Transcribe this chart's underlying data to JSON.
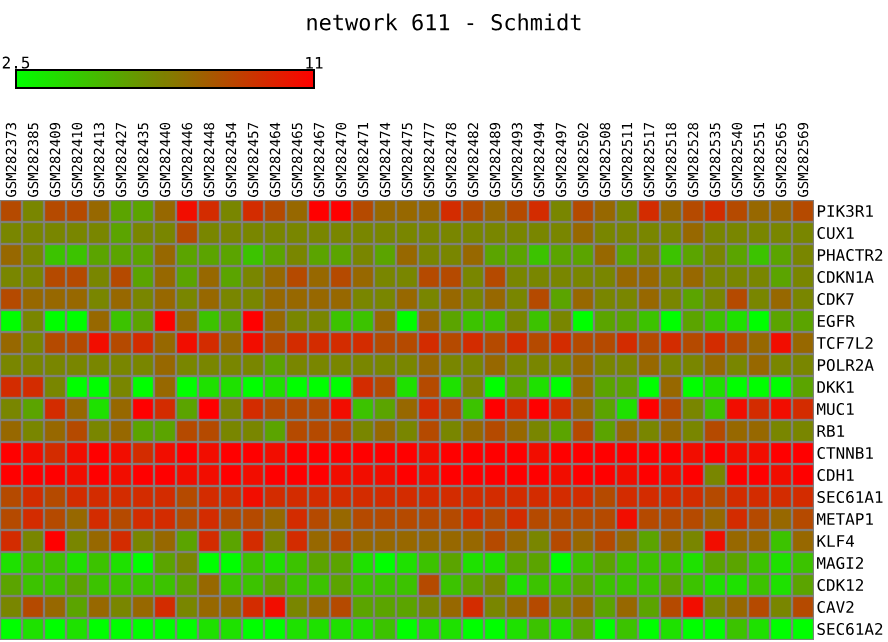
{
  "chart_data": {
    "type": "heatmap",
    "title": "network 611 - Schmidt",
    "categories": [
      "GSM282373",
      "GSM282385",
      "GSM282409",
      "GSM282410",
      "GSM282413",
      "GSM282427",
      "GSM282435",
      "GSM282440",
      "GSM282446",
      "GSM282448",
      "GSM282454",
      "GSM282457",
      "GSM282464",
      "GSM282465",
      "GSM282467",
      "GSM282470",
      "GSM282471",
      "GSM282474",
      "GSM282475",
      "GSM282477",
      "GSM282478",
      "GSM282482",
      "GSM282489",
      "GSM282493",
      "GSM282494",
      "GSM282497",
      "GSM282502",
      "GSM282508",
      "GSM282511",
      "GSM282517",
      "GSM282518",
      "GSM282528",
      "GSM282535",
      "GSM282540",
      "GSM282551",
      "GSM282565",
      "GSM282569"
    ],
    "y_categories": [
      "PIK3R1",
      "CUX1",
      "PHACTR2",
      "CDKN1A",
      "CDK7",
      "EGFR",
      "TCF7L2",
      "POLR2A",
      "DKK1",
      "MUC1",
      "RB1",
      "CTNNB1",
      "CDH1",
      "SEC61A1",
      "METAP1",
      "KLF4",
      "MAGI2",
      "CDK12",
      "CAV2",
      "SEC61A2"
    ],
    "cells": [
      [
        8.5,
        6.5,
        8.5,
        8.5,
        7.5,
        5.5,
        5.5,
        7.5,
        10.5,
        9.5,
        6.5,
        9.5,
        8.5,
        7.5,
        11,
        11,
        8.5,
        7.5,
        7.5,
        7.5,
        9.5,
        8.5,
        7.5,
        8.5,
        9.5,
        6.5,
        8.5,
        7.5,
        6.5,
        9.5,
        7.5,
        8.5,
        9.5,
        8.5,
        7.5,
        7.5,
        8.5
      ],
      [
        6.5,
        6.5,
        6.5,
        6.5,
        6.5,
        5.5,
        6.5,
        6.5,
        8.5,
        6.5,
        6.5,
        6.5,
        6.5,
        6.5,
        6.5,
        6.5,
        6.5,
        6.5,
        6.5,
        6.5,
        6.5,
        6.5,
        6.5,
        6.5,
        6.5,
        6.5,
        7.5,
        6.5,
        6.5,
        6.5,
        6.5,
        7.5,
        6.5,
        6.5,
        6.5,
        6.5,
        6.5
      ],
      [
        7.5,
        6.5,
        4.5,
        4.5,
        5.5,
        5.5,
        5.5,
        7.5,
        5.5,
        5.5,
        5.5,
        4.5,
        5.5,
        6.5,
        5.5,
        5.5,
        6.5,
        5.5,
        7.5,
        6.5,
        6.5,
        7.5,
        5.5,
        5.5,
        4.5,
        5.5,
        5.5,
        7.5,
        5.5,
        6.5,
        4.5,
        5.5,
        6.5,
        5.5,
        4.5,
        5.5,
        6.5
      ],
      [
        6.5,
        6.5,
        8.5,
        8.5,
        6.5,
        8.5,
        5.5,
        7.5,
        5.5,
        7.5,
        5.5,
        6.5,
        7.5,
        8.5,
        7.5,
        8.5,
        7.5,
        6.5,
        6.5,
        8.5,
        8.5,
        6.5,
        8.5,
        6.5,
        6.5,
        6.5,
        6.5,
        6.5,
        7.5,
        7.5,
        6.5,
        7.5,
        6.5,
        6.5,
        6.5,
        5.5,
        6.5
      ],
      [
        8.5,
        7.5,
        7.5,
        7.5,
        6.5,
        7.5,
        6.5,
        7.5,
        6.5,
        7.5,
        6.5,
        6.5,
        7.5,
        7.5,
        7.5,
        7.5,
        6.5,
        6.5,
        7.5,
        6.5,
        7.5,
        6.5,
        7.5,
        6.5,
        8.5,
        5.5,
        7.5,
        6.5,
        6.5,
        7.5,
        6.5,
        5.5,
        6.5,
        8.5,
        6.5,
        7.5,
        6.5
      ],
      [
        2.5,
        6.5,
        2.5,
        2.5,
        7.5,
        4.5,
        5.5,
        11,
        7.5,
        4.5,
        5.5,
        11,
        7.5,
        6.5,
        6.5,
        4.5,
        4.5,
        7.5,
        2.5,
        7.5,
        5.5,
        4.5,
        4.5,
        6.5,
        4.5,
        6.5,
        2.5,
        5.5,
        5.5,
        4.5,
        2.5,
        5.5,
        4.5,
        3.5,
        2.5,
        5.5,
        5.5
      ],
      [
        7.5,
        6.5,
        8.5,
        8.5,
        10.5,
        8.5,
        9.5,
        7.5,
        10.5,
        9.5,
        7.5,
        10.5,
        8.5,
        9.5,
        9.5,
        9.5,
        9.5,
        8.5,
        8.5,
        9.5,
        8.5,
        9.5,
        8.5,
        9.5,
        8.5,
        9.5,
        8.5,
        8.5,
        9.5,
        8.5,
        9.5,
        8.5,
        9.5,
        8.5,
        7.5,
        10.5,
        7.5
      ],
      [
        6.5,
        6.5,
        6.5,
        6.5,
        6.5,
        6.5,
        6.5,
        7.5,
        6.5,
        6.5,
        6.5,
        6.5,
        5.5,
        6.5,
        6.5,
        6.5,
        6.5,
        6.5,
        6.5,
        7.5,
        6.5,
        6.5,
        7.5,
        6.5,
        6.5,
        6.5,
        7.5,
        6.5,
        6.5,
        7.5,
        6.5,
        6.5,
        7.5,
        6.5,
        7.5,
        6.5,
        6.5
      ],
      [
        9.5,
        9.5,
        6.5,
        2.5,
        2.5,
        6.5,
        2.5,
        7.5,
        2.5,
        3.5,
        3.5,
        2.5,
        3.5,
        2.5,
        2.5,
        2.5,
        9.5,
        8.5,
        3.5,
        8.5,
        3.5,
        6.5,
        2.5,
        5.5,
        3.5,
        2.5,
        7.5,
        5.5,
        5.5,
        2.5,
        7.5,
        2.5,
        3.5,
        2.5,
        2.5,
        2.5,
        5.5
      ],
      [
        6.5,
        5.5,
        9.5,
        7.5,
        3.5,
        7.5,
        11,
        9.5,
        5.5,
        11,
        6.5,
        9.5,
        8.5,
        8.5,
        8.5,
        10.5,
        4.5,
        5.5,
        7.5,
        9.5,
        8.5,
        4.5,
        11,
        9.5,
        11,
        9.5,
        7.5,
        5.5,
        3.5,
        11,
        8.5,
        6.5,
        4.5,
        10.5,
        9.5,
        10.5,
        9.5
      ],
      [
        7.5,
        6.5,
        7.5,
        8.5,
        6.5,
        7.5,
        5.5,
        5.5,
        8.5,
        8.5,
        6.5,
        6.5,
        5.5,
        8.5,
        8.5,
        8.5,
        6.5,
        7.5,
        6.5,
        8.5,
        6.5,
        7.5,
        8.5,
        7.5,
        6.5,
        5.5,
        8.5,
        5.5,
        7.5,
        6.5,
        7.5,
        6.5,
        8.5,
        7.5,
        7.5,
        6.5,
        6.5
      ],
      [
        11,
        10.5,
        9.5,
        10.5,
        11,
        10.5,
        9.5,
        10.5,
        11,
        10.5,
        11,
        11,
        10.5,
        11,
        11,
        11,
        11,
        11,
        11,
        10.5,
        11,
        11,
        11,
        11,
        10.5,
        11,
        11,
        11,
        11,
        11,
        11,
        10.5,
        11,
        10.5,
        10.5,
        11,
        11
      ],
      [
        11,
        11,
        11,
        10.5,
        11,
        10.5,
        11,
        11,
        10.5,
        10.5,
        11,
        10.5,
        11,
        11,
        11,
        10.5,
        10.5,
        10.5,
        11,
        10.5,
        11,
        11,
        11,
        11,
        11,
        10.5,
        11,
        11,
        10.5,
        11,
        10.5,
        11,
        6.5,
        11,
        11,
        10.5,
        11
      ],
      [
        8.5,
        9.5,
        8.5,
        9.5,
        9.5,
        9.5,
        9.5,
        9.5,
        8.5,
        9.5,
        9.5,
        10.5,
        9.5,
        9.5,
        9.5,
        9.5,
        9.5,
        9.5,
        9.5,
        9.5,
        9.5,
        9.5,
        9.5,
        9.5,
        9.5,
        9.5,
        9.5,
        8.5,
        9.5,
        9.5,
        9.5,
        9.5,
        8.5,
        9.5,
        9.5,
        9.5,
        9.5
      ],
      [
        8.5,
        9.5,
        8.5,
        7.5,
        9.5,
        8.5,
        9.5,
        9.5,
        8.5,
        9.5,
        8.5,
        8.5,
        7.5,
        9.5,
        8.5,
        7.5,
        8.5,
        8.5,
        8.5,
        8.5,
        8.5,
        9.5,
        8.5,
        9.5,
        8.5,
        8.5,
        8.5,
        8.5,
        10.5,
        8.5,
        8.5,
        8.5,
        7.5,
        9.5,
        8.5,
        7.5,
        8.5
      ],
      [
        9.5,
        6.5,
        11,
        6.5,
        7.5,
        9.5,
        6.5,
        7.5,
        5.5,
        9.5,
        5.5,
        9.5,
        6.5,
        9.5,
        7.5,
        8.5,
        7.5,
        7.5,
        7.5,
        7.5,
        7.5,
        7.5,
        8.5,
        7.5,
        6.5,
        8.5,
        7.5,
        8.5,
        7.5,
        5.5,
        7.5,
        6.5,
        10.5,
        7.5,
        7.5,
        4.5,
        7.5
      ],
      [
        3.5,
        4.5,
        4.5,
        3.5,
        4.5,
        3.5,
        2.5,
        5.5,
        6.5,
        2.5,
        2.5,
        4.5,
        3.5,
        4.5,
        5.5,
        5.5,
        3.5,
        2.5,
        3.5,
        4.5,
        5.5,
        3.5,
        3.5,
        5.5,
        5.5,
        2.5,
        4.5,
        5.5,
        4.5,
        4.5,
        4.5,
        3.5,
        5.5,
        5.5,
        4.5,
        3.5,
        4.5
      ],
      [
        5.5,
        4.5,
        4.5,
        5.5,
        4.5,
        4.5,
        4.5,
        4.5,
        5.5,
        7.5,
        4.5,
        4.5,
        5.5,
        4.5,
        4.5,
        5.5,
        4.5,
        4.5,
        4.5,
        8.5,
        4.5,
        5.5,
        6.5,
        3.5,
        4.5,
        4.5,
        5.5,
        4.5,
        4.5,
        4.5,
        5.5,
        4.5,
        3.5,
        3.5,
        4.5,
        3.5,
        5.5
      ],
      [
        6.5,
        8.5,
        7.5,
        5.5,
        7.5,
        6.5,
        7.5,
        9.5,
        6.5,
        7.5,
        7.5,
        9.5,
        10.5,
        6.5,
        7.5,
        8.5,
        5.5,
        5.5,
        5.5,
        6.5,
        7.5,
        9.5,
        6.5,
        7.5,
        8.5,
        6.5,
        7.5,
        5.5,
        7.5,
        5.5,
        8.5,
        10.5,
        6.5,
        7.5,
        8.5,
        6.5,
        8.5
      ],
      [
        2.5,
        3.5,
        2.5,
        3.5,
        2.5,
        2.5,
        2.5,
        2.5,
        2.5,
        3.5,
        3.5,
        2.5,
        2.5,
        3.5,
        3.5,
        3.5,
        3.5,
        4.5,
        2.5,
        3.5,
        3.5,
        2.5,
        2.5,
        3.5,
        4.5,
        3.5,
        5.5,
        2.5,
        4.5,
        2.5,
        3.5,
        2.5,
        2.5,
        4.5,
        3.5,
        2.5,
        2.5
      ]
    ],
    "clim": [
      2.5,
      11
    ],
    "cticks": [
      2.5,
      11
    ]
  }
}
